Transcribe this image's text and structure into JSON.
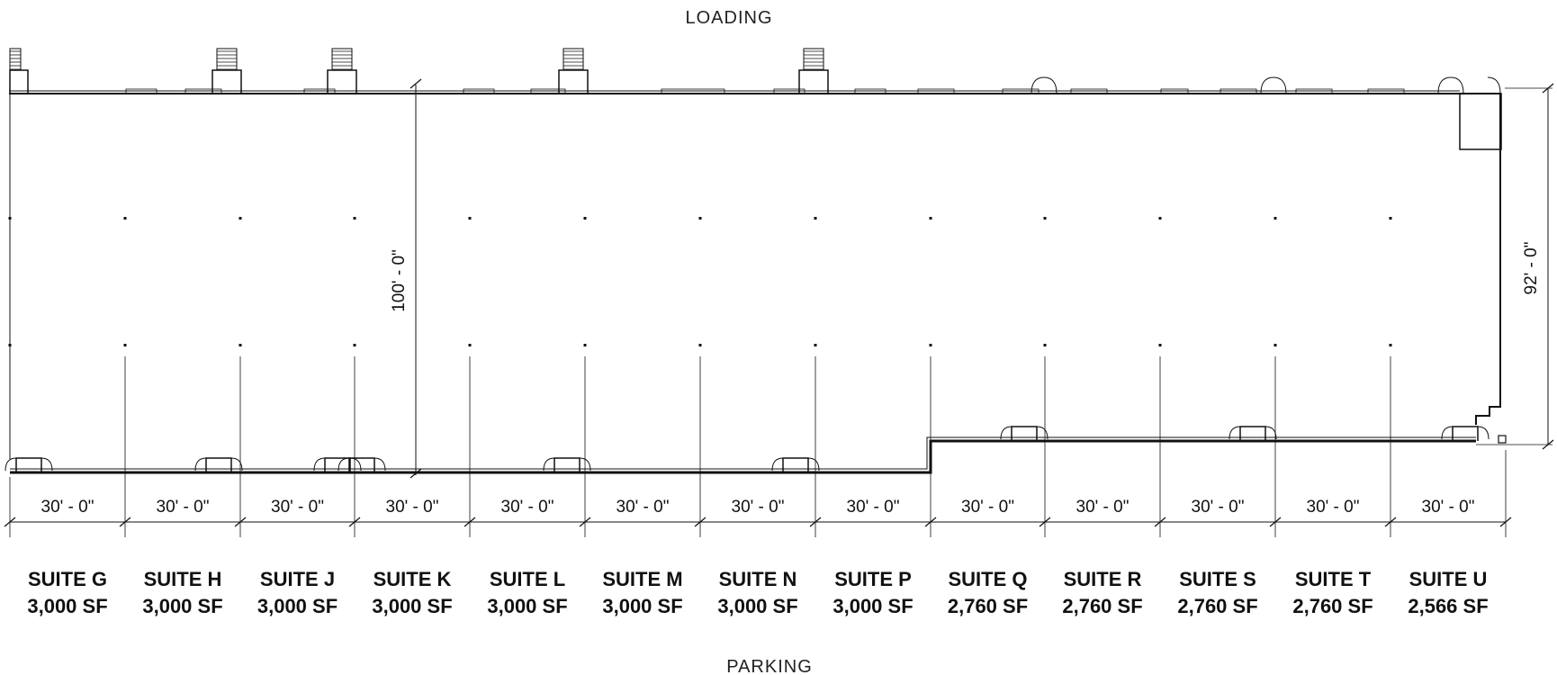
{
  "top_label": "LOADING",
  "bottom_label": "PARKING",
  "depth_dimension": "100' - 0\"",
  "end_depth_dimension": "92' - 0\"",
  "suites": [
    {
      "name": "SUITE G",
      "area": "3,000 SF",
      "width": "30' - 0\""
    },
    {
      "name": "SUITE H",
      "area": "3,000 SF",
      "width": "30' - 0\""
    },
    {
      "name": "SUITE J",
      "area": "3,000 SF",
      "width": "30' - 0\""
    },
    {
      "name": "SUITE K",
      "area": "3,000 SF",
      "width": "30' - 0\""
    },
    {
      "name": "SUITE L",
      "area": "3,000 SF",
      "width": "30' - 0\""
    },
    {
      "name": "SUITE M",
      "area": "3,000 SF",
      "width": "30' - 0\""
    },
    {
      "name": "SUITE N",
      "area": "3,000 SF",
      "width": "30' - 0\""
    },
    {
      "name": "SUITE P",
      "area": "3,000 SF",
      "width": "30' - 0\""
    },
    {
      "name": "SUITE Q",
      "area": "2,760 SF",
      "width": "30' - 0\""
    },
    {
      "name": "SUITE R",
      "area": "2,760 SF",
      "width": "30' - 0\""
    },
    {
      "name": "SUITE S",
      "area": "2,760 SF",
      "width": "30' - 0\""
    },
    {
      "name": "SUITE T",
      "area": "2,760 SF",
      "width": "30' - 0\""
    },
    {
      "name": "SUITE U",
      "area": "2,566 SF",
      "width": "30' - 0\""
    }
  ]
}
